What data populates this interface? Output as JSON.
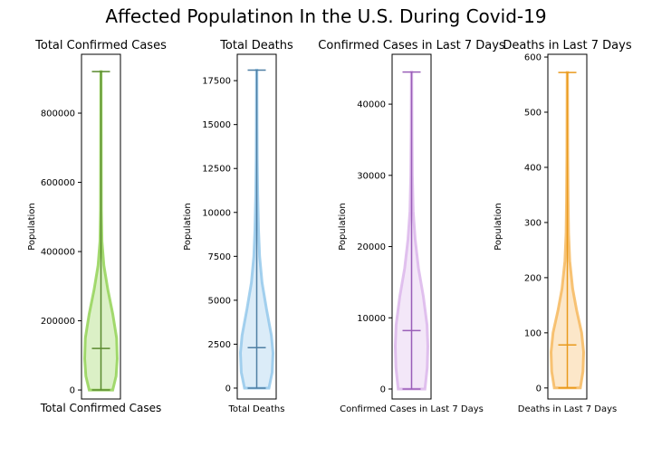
{
  "title": "Affected Populatinon In the U.S. During Covid-19",
  "chart_data": [
    {
      "type": "violin",
      "title": "Total Confirmed Cases",
      "xlabel": "Total Confirmed Cases",
      "ylabel": "Population",
      "ylim": [
        -26000,
        970000
      ],
      "yticks": [
        0,
        200000,
        400000,
        600000,
        800000
      ],
      "min": 0,
      "median": 120000,
      "max": 920000,
      "density": [
        [
          0,
          0.72
        ],
        [
          40000,
          0.93
        ],
        [
          90000,
          1.0
        ],
        [
          150000,
          0.96
        ],
        [
          220000,
          0.72
        ],
        [
          290000,
          0.42
        ],
        [
          360000,
          0.18
        ],
        [
          430000,
          0.06
        ],
        [
          520000,
          0.03
        ],
        [
          620000,
          0.02
        ],
        [
          760000,
          0.015
        ],
        [
          920000,
          0.01
        ]
      ],
      "color": "#8fd14f",
      "median_color": "#5a8a2e"
    },
    {
      "type": "violin",
      "title": "Total Deaths",
      "xlabel": "Total Deaths",
      "ylabel": "Population",
      "ylim": [
        -620,
        19000
      ],
      "yticks": [
        0,
        2500,
        5000,
        7500,
        10000,
        12500,
        15000,
        17500
      ],
      "min": 0,
      "median": 2300,
      "max": 18100,
      "density": [
        [
          0,
          0.75
        ],
        [
          900,
          0.95
        ],
        [
          2000,
          1.0
        ],
        [
          3000,
          0.9
        ],
        [
          4500,
          0.6
        ],
        [
          6000,
          0.33
        ],
        [
          7500,
          0.18
        ],
        [
          9000,
          0.11
        ],
        [
          11000,
          0.06
        ],
        [
          13000,
          0.035
        ],
        [
          15000,
          0.02
        ],
        [
          18100,
          0.01
        ]
      ],
      "color": "#8ec5ea",
      "median_color": "#4f7fa3"
    },
    {
      "type": "violin",
      "title": "Confirmed Cases in Last 7 Days",
      "xlabel": "Confirmed Cases in Last 7 Days",
      "ylabel": "Population",
      "ylim": [
        -1400,
        47000
      ],
      "yticks": [
        0,
        10000,
        20000,
        30000,
        40000
      ],
      "min": 0,
      "median": 8200,
      "max": 44500,
      "density": [
        [
          0,
          0.82
        ],
        [
          3000,
          0.96
        ],
        [
          6000,
          1.0
        ],
        [
          9000,
          0.95
        ],
        [
          13000,
          0.72
        ],
        [
          17000,
          0.42
        ],
        [
          21000,
          0.22
        ],
        [
          25000,
          0.1
        ],
        [
          30000,
          0.05
        ],
        [
          36000,
          0.03
        ],
        [
          44500,
          0.01
        ]
      ],
      "color": "#d9b3ea",
      "median_color": "#9a5fb8"
    },
    {
      "type": "violin",
      "title": "Deaths in Last 7 Days",
      "xlabel": "Deaths in Last 7 Days",
      "ylabel": "Population",
      "ylim": [
        -20,
        605
      ],
      "yticks": [
        0,
        100,
        200,
        300,
        400,
        500,
        600
      ],
      "min": 0,
      "median": 78,
      "max": 572,
      "density": [
        [
          0,
          0.8
        ],
        [
          30,
          0.96
        ],
        [
          65,
          1.0
        ],
        [
          100,
          0.88
        ],
        [
          140,
          0.58
        ],
        [
          180,
          0.33
        ],
        [
          230,
          0.15
        ],
        [
          280,
          0.08
        ],
        [
          340,
          0.05
        ],
        [
          420,
          0.03
        ],
        [
          572,
          0.01
        ]
      ],
      "color": "#f5b556",
      "median_color": "#e99a1c"
    }
  ]
}
